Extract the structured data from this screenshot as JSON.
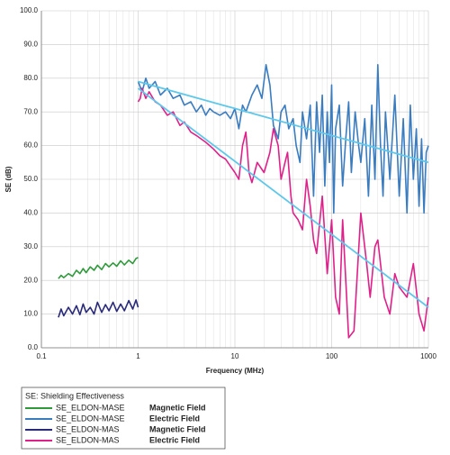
{
  "chart_data": {
    "type": "line",
    "xscale": "log",
    "grid": true,
    "xlabel": "Frequency (MHz)",
    "ylabel": "SE (dB)",
    "legend_title": "SE: Shielding Effectiveness",
    "legend_position": "bottom-left",
    "xlim": [
      0.1,
      1000
    ],
    "xticks": [
      0.1,
      1,
      10,
      100,
      1000
    ],
    "ylim": [
      0,
      100
    ],
    "yticks": [
      {
        "value": 0,
        "label": "0.0"
      },
      {
        "value": 10,
        "label": "10.0"
      },
      {
        "value": 20,
        "label": "20.0"
      },
      {
        "value": 30,
        "label": "30.0"
      },
      {
        "value": 40,
        "label": "40.0"
      },
      {
        "value": 50,
        "label": "50.0"
      },
      {
        "value": 60,
        "label": "60.0"
      },
      {
        "value": 70,
        "label": "70.0"
      },
      {
        "value": 80,
        "label": "80.0"
      },
      {
        "value": 90,
        "label": "90.0"
      },
      {
        "value": 100,
        "label": "100.0"
      }
    ],
    "series": [
      {
        "name": "SE_ELDON-MASE",
        "field": "Magnetic Field",
        "color": "#2e9a3a",
        "x": [
          0.15,
          0.16,
          0.17,
          0.19,
          0.21,
          0.23,
          0.25,
          0.27,
          0.29,
          0.32,
          0.35,
          0.38,
          0.42,
          0.46,
          0.5,
          0.55,
          0.6,
          0.66,
          0.72,
          0.8,
          0.88,
          0.95,
          1.0
        ],
        "values": [
          20.5,
          21.5,
          20.8,
          22.0,
          21.2,
          23.0,
          22.0,
          23.5,
          22.3,
          24.0,
          23.0,
          24.5,
          23.2,
          25.0,
          24.0,
          25.2,
          24.2,
          25.8,
          24.6,
          26.0,
          25.0,
          26.5,
          26.8
        ]
      },
      {
        "name": "SE_ELDON-MASE",
        "field": "Electric Field",
        "color": "#3a7cc0",
        "x": [
          1.0,
          1.1,
          1.2,
          1.3,
          1.5,
          1.7,
          2.0,
          2.3,
          2.7,
          3.0,
          3.5,
          4.0,
          4.5,
          5.0,
          5.5,
          6.0,
          7.0,
          8.0,
          9.0,
          10,
          11,
          12,
          13,
          15,
          17,
          19,
          21,
          23,
          25,
          28,
          30,
          33,
          36,
          40,
          43,
          47,
          50,
          55,
          60,
          65,
          70,
          75,
          80,
          85,
          90,
          95,
          100,
          105,
          110,
          120,
          130,
          140,
          150,
          160,
          175,
          190,
          200,
          220,
          240,
          260,
          280,
          300,
          320,
          340,
          360,
          400,
          450,
          500,
          550,
          600,
          650,
          700,
          750,
          800,
          850,
          900,
          950,
          1000
        ],
        "values": [
          79,
          76,
          80,
          77,
          79,
          75,
          77,
          74,
          75,
          72,
          73,
          70,
          72,
          69,
          71,
          70,
          69,
          70,
          68,
          71,
          65,
          72,
          70,
          75,
          78,
          74,
          84,
          78,
          66,
          62,
          70,
          72,
          65,
          68,
          60,
          55,
          70,
          62,
          72,
          45,
          73,
          58,
          75,
          48,
          70,
          55,
          78,
          40,
          65,
          72,
          48,
          62,
          73,
          52,
          70,
          60,
          55,
          68,
          45,
          72,
          50,
          84,
          60,
          45,
          70,
          50,
          75,
          45,
          68,
          40,
          72,
          50,
          65,
          42,
          62,
          40,
          58,
          60
        ]
      },
      {
        "name": "SE_ELDON-MAS",
        "field": "Magnetic Field",
        "color": "#2a2a7a",
        "x": [
          0.15,
          0.16,
          0.17,
          0.19,
          0.21,
          0.23,
          0.25,
          0.27,
          0.29,
          0.32,
          0.35,
          0.38,
          0.42,
          0.46,
          0.5,
          0.55,
          0.6,
          0.66,
          0.72,
          0.8,
          0.88,
          0.95,
          1.0
        ],
        "values": [
          9.0,
          11.5,
          9.5,
          12.0,
          10.0,
          12.5,
          9.8,
          13.0,
          10.5,
          12.0,
          10.0,
          13.5,
          10.5,
          12.8,
          11.0,
          13.5,
          10.8,
          13.0,
          11.0,
          14.0,
          11.5,
          14.2,
          12.0
        ]
      },
      {
        "name": "SE_ELDON-MAS",
        "field": "Electric Field",
        "color": "#e0208a",
        "x": [
          1.0,
          1.05,
          1.1,
          1.2,
          1.3,
          1.5,
          1.7,
          2.0,
          2.3,
          2.7,
          3.0,
          3.5,
          4.0,
          5.0,
          6.0,
          7.0,
          8.0,
          10,
          11,
          12,
          13,
          14,
          15,
          17,
          20,
          23,
          25,
          28,
          30,
          33,
          35,
          38,
          40,
          45,
          50,
          55,
          60,
          65,
          70,
          80,
          90,
          100,
          110,
          120,
          130,
          140,
          150,
          170,
          200,
          230,
          250,
          280,
          300,
          350,
          400,
          450,
          500,
          600,
          700,
          800,
          900,
          1000
        ],
        "values": [
          73,
          74,
          77,
          74,
          76,
          73,
          72,
          69,
          70,
          66,
          67,
          64,
          63,
          61,
          59,
          57,
          56,
          52,
          50,
          60,
          64,
          52,
          49,
          55,
          52,
          58,
          65,
          60,
          50,
          55,
          58,
          45,
          40,
          38,
          35,
          50,
          42,
          32,
          28,
          45,
          22,
          38,
          15,
          10,
          38,
          20,
          3,
          5,
          40,
          25,
          15,
          30,
          32,
          15,
          10,
          22,
          18,
          15,
          25,
          10,
          5,
          15
        ]
      },
      {
        "color": "#5ec8ea",
        "x": [
          1,
          1000
        ],
        "values": [
          79,
          55
        ]
      },
      {
        "color": "#5ec8ea",
        "x": [
          1,
          1000
        ],
        "values": [
          77,
          12
        ]
      }
    ]
  }
}
